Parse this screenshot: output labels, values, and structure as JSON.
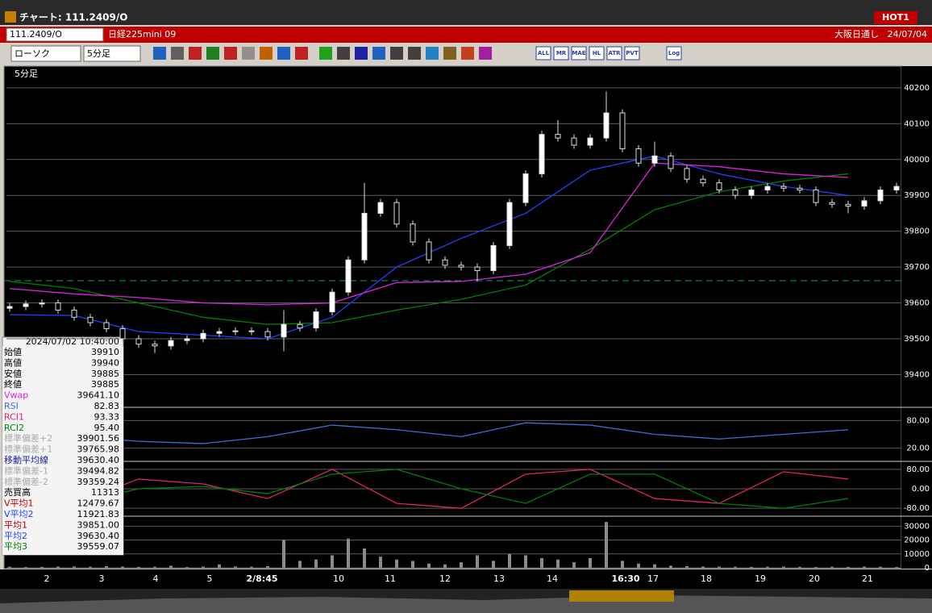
{
  "window": {
    "title": "チャート: 111.2409/O",
    "badge": "HOT1"
  },
  "toolbar": {
    "symbol": "111.2409/O",
    "name": "日経225mini 09",
    "session": "大阪日通し",
    "date": "24/07/04",
    "chart_style": "ローソク",
    "interval": "5分足",
    "buttons": [
      "ALL",
      "MR",
      "MAE",
      "HL",
      "ATR",
      "PVT",
      "Log"
    ]
  },
  "chart_data": [
    {
      "type": "candlestick",
      "title": "5分足",
      "open": [
        39585,
        39590,
        39597,
        39600,
        39580,
        39560,
        39545,
        39528,
        39500,
        39485,
        39480,
        39495,
        39500,
        39515,
        39520,
        39522,
        39520,
        39505,
        39540,
        39530,
        39575,
        39630,
        39720,
        39850,
        39880,
        39820,
        39770,
        39720,
        39705,
        39700,
        39690,
        39760,
        39880,
        39960,
        40070,
        40060,
        40040,
        40060,
        40130,
        40030,
        39990,
        40010,
        39975,
        39945,
        39935,
        39915,
        39900,
        39915,
        39925,
        39920,
        39915,
        39880,
        39875,
        39870,
        39885,
        39915
      ],
      "high": [
        39600,
        39607,
        39610,
        39610,
        39590,
        39570,
        39555,
        39538,
        39510,
        39495,
        39505,
        39510,
        39525,
        39530,
        39532,
        39532,
        39530,
        39580,
        39550,
        39585,
        39640,
        39730,
        39935,
        39890,
        39890,
        39830,
        39780,
        39730,
        39715,
        39710,
        39770,
        39890,
        39970,
        40080,
        40110,
        40070,
        40070,
        40190,
        40140,
        40040,
        40050,
        40020,
        39985,
        39955,
        39945,
        39925,
        39925,
        39935,
        39935,
        39930,
        39925,
        39890,
        39885,
        39895,
        39925,
        39935
      ],
      "low": [
        39575,
        39580,
        39587,
        39570,
        39550,
        39535,
        39518,
        39490,
        39475,
        39460,
        39470,
        39485,
        39490,
        39505,
        39510,
        39510,
        39495,
        39465,
        39520,
        39520,
        39565,
        39620,
        39710,
        39840,
        39810,
        39760,
        39710,
        39695,
        39690,
        39660,
        39680,
        39750,
        39870,
        39950,
        40050,
        40030,
        40030,
        40050,
        40020,
        39980,
        39980,
        39965,
        39935,
        39925,
        39905,
        39890,
        39890,
        39905,
        39910,
        39905,
        39870,
        39865,
        39850,
        39860,
        39875,
        39905
      ],
      "close": [
        39590,
        39597,
        39600,
        39580,
        39560,
        39545,
        39528,
        39500,
        39485,
        39480,
        39495,
        39500,
        39515,
        39520,
        39522,
        39520,
        39505,
        39540,
        39530,
        39575,
        39630,
        39720,
        39850,
        39880,
        39820,
        39770,
        39720,
        39705,
        39700,
        39690,
        39760,
        39880,
        39960,
        40070,
        40060,
        40040,
        40060,
        40130,
        40030,
        39990,
        40010,
        39975,
        39945,
        39935,
        39915,
        39900,
        39915,
        39925,
        39920,
        39915,
        39880,
        39875,
        39870,
        39885,
        39915,
        39925
      ],
      "series": [
        {
          "name": "平均2",
          "color": "#2040ff",
          "values": [
            39567,
            39565,
            39520,
            39510,
            39500,
            39560,
            39700,
            39780,
            39850,
            39970,
            40010,
            39960,
            39925,
            39900
          ]
        },
        {
          "name": "平均3",
          "color": "#008000",
          "values": [
            39660,
            39640,
            39600,
            39560,
            39540,
            39545,
            39580,
            39610,
            39650,
            39750,
            39860,
            39910,
            39940,
            39960
          ]
        },
        {
          "name": "Vwap",
          "color": "#e020e0",
          "values": [
            39640,
            39625,
            39615,
            39600,
            39595,
            39600,
            39657,
            39660,
            39680,
            39740,
            39990,
            39980,
            39960,
            39950
          ]
        }
      ],
      "ylim": [
        39320,
        40256
      ],
      "yticks": [
        39400,
        39500,
        39600,
        39700,
        39800,
        39900,
        40000,
        40100,
        40200
      ]
    },
    {
      "type": "line",
      "ylim": [
        -5,
        105
      ],
      "yticks": [
        {
          "value": 80,
          "label": "80.00"
        },
        {
          "value": 20,
          "label": "20.00"
        }
      ],
      "series": [
        {
          "name": "RSI",
          "color": "#3a6fd8",
          "values": [
            30,
            45,
            35,
            30,
            45,
            70,
            60,
            45,
            75,
            70,
            50,
            40,
            50,
            60
          ]
        }
      ]
    },
    {
      "type": "line",
      "ylim": [
        -106,
        106
      ],
      "yticks": [
        {
          "value": 80,
          "label": "80.00"
        },
        {
          "value": 0,
          "label": "0.00"
        },
        {
          "value": -80,
          "label": "-80.00"
        }
      ],
      "series": [
        {
          "name": "RCI1",
          "color": "#e0206a",
          "values": [
            0,
            -60,
            40,
            20,
            -40,
            80,
            -60,
            -80,
            60,
            80,
            -40,
            -60,
            70,
            40
          ]
        },
        {
          "name": "RCI2",
          "color": "#008000",
          "values": [
            -60,
            -60,
            0,
            10,
            -20,
            60,
            80,
            0,
            -60,
            60,
            60,
            -60,
            -80,
            -40
          ]
        }
      ]
    },
    {
      "type": "bar",
      "color": "#8a8a8a",
      "values": [
        800,
        600,
        700,
        900,
        1000,
        800,
        1200,
        900,
        700,
        800,
        1500,
        600,
        900,
        2500,
        1000,
        800,
        1200,
        20000,
        5000,
        6000,
        9000,
        21000,
        14000,
        8000,
        6000,
        5000,
        3000,
        2500,
        4000,
        9000,
        5000,
        10000,
        9000,
        7000,
        6000,
        4000,
        7000,
        33000,
        5000,
        3000,
        2500,
        1500,
        1200,
        1000,
        900,
        800,
        700,
        800,
        900,
        700,
        600,
        800,
        700,
        900,
        800,
        600
      ],
      "ylim": [
        0,
        36000
      ],
      "yticks": [
        0,
        10000,
        20000,
        30000
      ],
      "xtick_labels": [
        "2",
        "3",
        "4",
        "5",
        "2/8:45",
        "10",
        "11",
        "12",
        "13",
        "14",
        "16:30",
        "17",
        "18",
        "19",
        "20",
        "21"
      ]
    }
  ],
  "info_box": {
    "datetime": "2024/07/02 10:40:00",
    "rows": [
      [
        "始値",
        "39910"
      ],
      [
        "高値",
        "39940"
      ],
      [
        "安値",
        "39885"
      ],
      [
        "終値",
        "39885"
      ],
      [
        "Vwap",
        "39641.10"
      ],
      [
        "RSI",
        "82.83"
      ],
      [
        "RCI1",
        "93.33"
      ],
      [
        "RCI2",
        "95.40"
      ],
      [
        "標準偏差+2",
        "39901.56"
      ],
      [
        "標準偏差+1",
        "39765.98"
      ],
      [
        "移動平均線",
        "39630.40"
      ],
      [
        "標準偏差-1",
        "39494.82"
      ],
      [
        "標準偏差-2",
        "39359.24"
      ],
      [
        "売買高",
        "11313"
      ],
      [
        "V平均1",
        "12479.67"
      ],
      [
        "V平均2",
        "11921.83"
      ],
      [
        "平均1",
        "39851.00"
      ],
      [
        "平均2",
        "39630.40"
      ],
      [
        "平均3",
        "39559.07"
      ]
    ]
  }
}
